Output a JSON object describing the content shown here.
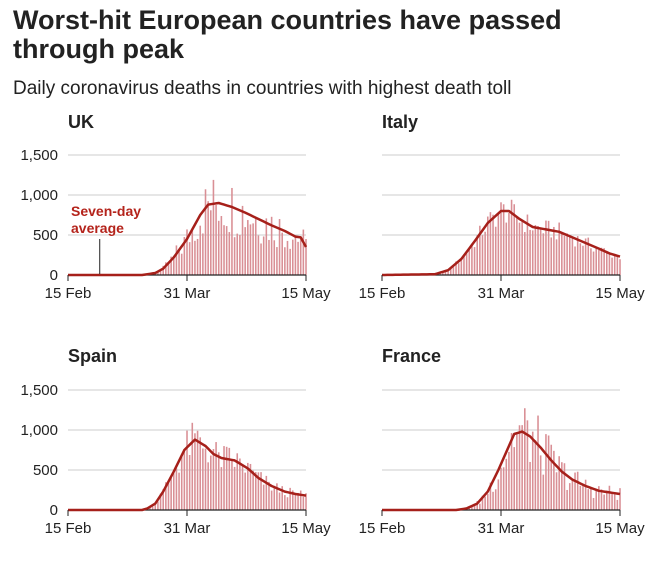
{
  "title": "Worst-hit European countries have passed through peak",
  "subtitle": "Daily coronavirus deaths in countries with highest death toll",
  "colors": {
    "bar": "#d98f95",
    "line": "#a6201a",
    "grid": "#cccccc",
    "axis": "#222222",
    "annotation": "#b4231b"
  },
  "chart_data": {
    "type": "bar",
    "days": 91,
    "x_ticks": [
      {
        "day": 0,
        "label": "15 Feb"
      },
      {
        "day": 45,
        "label": "31 Mar"
      },
      {
        "day": 90,
        "label": "15 May"
      }
    ],
    "y_ticks": [
      0,
      500,
      1000,
      1500
    ],
    "y_tick_labels": [
      "0",
      "500",
      "1,000",
      "1,500"
    ],
    "ylim": [
      0,
      1500
    ],
    "annotation": {
      "label_line1": "Seven-day",
      "label_line2": "average",
      "panel": 0,
      "day": 12,
      "value": 0
    },
    "panels": [
      {
        "name": "UK",
        "keyframes": [
          [
            0,
            0
          ],
          [
            28,
            0
          ],
          [
            33,
            25
          ],
          [
            36,
            80
          ],
          [
            40,
            220
          ],
          [
            45,
            450
          ],
          [
            50,
            750
          ],
          [
            53,
            880
          ],
          [
            57,
            900
          ],
          [
            62,
            850
          ],
          [
            67,
            780
          ],
          [
            72,
            700
          ],
          [
            77,
            620
          ],
          [
            82,
            550
          ],
          [
            86,
            480
          ],
          [
            88,
            470
          ],
          [
            90,
            350
          ]
        ],
        "noise": 0.45
      },
      {
        "name": "Italy",
        "keyframes": [
          [
            0,
            0
          ],
          [
            20,
            10
          ],
          [
            25,
            60
          ],
          [
            30,
            200
          ],
          [
            35,
            420
          ],
          [
            40,
            650
          ],
          [
            45,
            800
          ],
          [
            48,
            800
          ],
          [
            52,
            700
          ],
          [
            57,
            600
          ],
          [
            62,
            570
          ],
          [
            67,
            540
          ],
          [
            72,
            470
          ],
          [
            77,
            400
          ],
          [
            82,
            330
          ],
          [
            86,
            270
          ],
          [
            90,
            230
          ]
        ],
        "noise": 0.22
      },
      {
        "name": "Spain",
        "keyframes": [
          [
            0,
            0
          ],
          [
            28,
            0
          ],
          [
            30,
            20
          ],
          [
            33,
            80
          ],
          [
            36,
            230
          ],
          [
            40,
            480
          ],
          [
            44,
            750
          ],
          [
            48,
            880
          ],
          [
            52,
            800
          ],
          [
            55,
            700
          ],
          [
            58,
            650
          ],
          [
            63,
            620
          ],
          [
            68,
            520
          ],
          [
            72,
            400
          ],
          [
            77,
            300
          ],
          [
            82,
            230
          ],
          [
            86,
            200
          ],
          [
            90,
            180
          ]
        ],
        "noise": 0.3
      },
      {
        "name": "France",
        "keyframes": [
          [
            0,
            0
          ],
          [
            28,
            0
          ],
          [
            32,
            20
          ],
          [
            36,
            80
          ],
          [
            40,
            230
          ],
          [
            44,
            500
          ],
          [
            48,
            800
          ],
          [
            50,
            950
          ],
          [
            53,
            980
          ],
          [
            56,
            920
          ],
          [
            60,
            780
          ],
          [
            64,
            620
          ],
          [
            68,
            480
          ],
          [
            72,
            380
          ],
          [
            77,
            300
          ],
          [
            82,
            240
          ],
          [
            86,
            220
          ],
          [
            90,
            200
          ]
        ],
        "noise": 0.45
      }
    ]
  }
}
